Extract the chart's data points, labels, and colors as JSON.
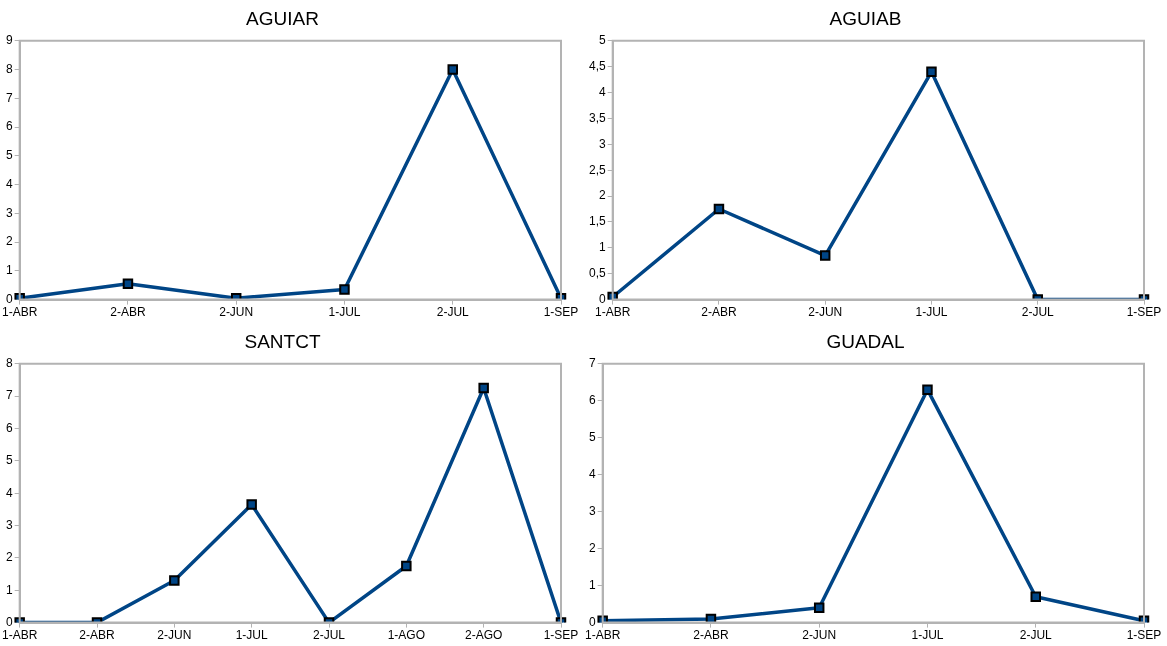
{
  "chart_data": [
    {
      "type": "line",
      "title": "AGUIAR",
      "categories": [
        "1-ABR",
        "2-ABR",
        "2-JUN",
        "1-JUL",
        "2-JUL",
        "1-SEP"
      ],
      "series": [
        {
          "color": "#004586",
          "values": [
            0.05,
            0.55,
            0.05,
            0.35,
            8,
            0.05
          ]
        }
      ],
      "ylim": [
        0,
        9
      ],
      "yticks": [
        0,
        1,
        2,
        3,
        4,
        5,
        6,
        7,
        8,
        9
      ],
      "grid": false,
      "legend": false,
      "marker": "square",
      "line_style": "solid"
    },
    {
      "type": "line",
      "title": "AGUIAB",
      "categories": [
        "1-ABR",
        "2-ABR",
        "2-JUN",
        "1-JUL",
        "2-JUL",
        "1-SEP"
      ],
      "series": [
        {
          "color": "#004586",
          "values": [
            0.05,
            1.75,
            0.85,
            4.4,
            0,
            0
          ]
        }
      ],
      "ylim": [
        0,
        5
      ],
      "yticks": [
        0,
        {
          "value": 0.5,
          "label": "0,5"
        },
        1,
        {
          "value": 1.5,
          "label": "1,5"
        },
        2,
        {
          "value": 2.5,
          "label": "2,5"
        },
        3,
        {
          "value": 3.5,
          "label": "3,5"
        },
        4,
        {
          "value": 4.5,
          "label": "4,5"
        },
        5
      ],
      "grid": false,
      "legend": false,
      "marker": "square",
      "line_style": "solid"
    },
    {
      "type": "line",
      "title": "SANTCT",
      "categories": [
        "1-ABR",
        "2-ABR",
        "2-JUN",
        "1-JUL",
        "2-JUL",
        "1-AGO",
        "2-AGO",
        "1-SEP"
      ],
      "series": [
        {
          "color": "#004586",
          "values": [
            0,
            0,
            1.3,
            3.65,
            0,
            1.75,
            7.25,
            0
          ]
        }
      ],
      "ylim": [
        0,
        8
      ],
      "yticks": [
        0,
        1,
        2,
        3,
        4,
        5,
        6,
        7,
        8
      ],
      "grid": false,
      "legend": false,
      "marker": "square",
      "line_style": "solid"
    },
    {
      "type": "line",
      "title": "GUADAL",
      "categories": [
        "1-ABR",
        "2-ABR",
        "2-JUN",
        "1-JUL",
        "2-JUL",
        "1-SEP"
      ],
      "series": [
        {
          "color": "#004586",
          "values": [
            0.05,
            0.1,
            0.4,
            6.3,
            0.7,
            0.05
          ]
        }
      ],
      "ylim": [
        0,
        7
      ],
      "yticks": [
        0,
        1,
        2,
        3,
        4,
        5,
        6,
        7
      ],
      "grid": false,
      "legend": false,
      "marker": "square",
      "line_style": "solid"
    }
  ]
}
